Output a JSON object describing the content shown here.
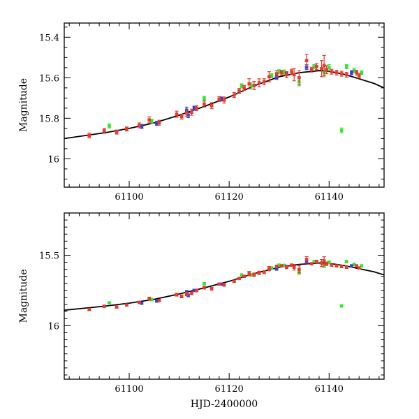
{
  "colors": {
    "red": "#e8392b",
    "blue": "#2a45d8",
    "green": "#33e633",
    "axes": "#000000",
    "model": "#000000"
  },
  "chart_data": [
    {
      "type": "scatter",
      "id": "top",
      "xlabel": "",
      "ylabel": "Magnitude",
      "xlim": [
        61087,
        61151
      ],
      "ylim": [
        16.14,
        15.33
      ],
      "inverted_y": true,
      "xticks": [
        61100,
        61120,
        61140
      ],
      "xtick_labels": [
        "61100",
        "61120",
        "61140"
      ],
      "yticks": [
        15.4,
        15.6,
        15.8,
        16.0
      ],
      "ytick_labels": [
        "15.4",
        "15.6",
        "15.8",
        "16"
      ],
      "model_curve": [
        [
          61087,
          15.9
        ],
        [
          61095,
          15.872
        ],
        [
          61100,
          15.85
        ],
        [
          61105,
          15.823
        ],
        [
          61110,
          15.785
        ],
        [
          61115,
          15.742
        ],
        [
          61120,
          15.695
        ],
        [
          61125,
          15.64
        ],
        [
          61130,
          15.595
        ],
        [
          61134,
          15.575
        ],
        [
          61138,
          15.565
        ],
        [
          61140,
          15.568
        ],
        [
          61143,
          15.583
        ],
        [
          61146,
          15.605
        ],
        [
          61149,
          15.628
        ],
        [
          61151,
          15.65
        ]
      ],
      "series": [
        {
          "name": "red",
          "color": "red",
          "points": [
            [
              61092.0,
              15.885,
              0.012
            ],
            [
              61095.0,
              15.862,
              0.012
            ],
            [
              61097.5,
              15.868,
              0.01
            ],
            [
              61099.5,
              15.853,
              0.01
            ],
            [
              61102.0,
              15.835,
              0.012
            ],
            [
              61104.0,
              15.808,
              0.015
            ],
            [
              61106.0,
              15.822,
              0.012
            ],
            [
              61109.5,
              15.78,
              0.015
            ],
            [
              61110.5,
              15.792,
              0.012
            ],
            [
              61111.5,
              15.775,
              0.015
            ],
            [
              61112.5,
              15.77,
              0.015
            ],
            [
              61113.5,
              15.75,
              0.012
            ],
            [
              61115.0,
              15.73,
              0.015
            ],
            [
              61116.5,
              15.738,
              0.015
            ],
            [
              61118.0,
              15.705,
              0.012
            ],
            [
              61119.0,
              15.71,
              0.015
            ],
            [
              61121.0,
              15.685,
              0.012
            ],
            [
              61122.0,
              15.665,
              0.012
            ],
            [
              61123.0,
              15.65,
              0.012
            ],
            [
              61124.0,
              15.63,
              0.025
            ],
            [
              61125.0,
              15.638,
              0.02
            ],
            [
              61126.0,
              15.625,
              0.02
            ],
            [
              61127.0,
              15.62,
              0.015
            ],
            [
              61128.0,
              15.595,
              0.025
            ],
            [
              61129.5,
              15.58,
              0.015
            ],
            [
              61130.5,
              15.575,
              0.012
            ],
            [
              61131.5,
              15.585,
              0.015
            ],
            [
              61132.5,
              15.57,
              0.012
            ],
            [
              61133.0,
              15.585,
              0.03
            ],
            [
              61134.0,
              15.6,
              0.035
            ],
            [
              61135.5,
              15.515,
              0.03
            ],
            [
              61136.5,
              15.56,
              0.012
            ],
            [
              61137.5,
              15.545,
              0.015
            ],
            [
              61138.5,
              15.555,
              0.04
            ],
            [
              61139.0,
              15.54,
              0.05
            ],
            [
              61139.5,
              15.56,
              0.02
            ],
            [
              61140.5,
              15.57,
              0.012
            ],
            [
              61141.5,
              15.575,
              0.012
            ],
            [
              61142.5,
              15.58,
              0.012
            ],
            [
              61143.5,
              15.585,
              0.012
            ],
            [
              61145.5,
              15.575,
              0.012
            ],
            [
              61146.0,
              15.59,
              0.012
            ]
          ]
        },
        {
          "name": "blue",
          "color": "blue",
          "points": [
            [
              61102.5,
              15.84,
              0.01
            ],
            [
              61105.5,
              15.825,
              0.01
            ],
            [
              61111.5,
              15.76,
              0.015
            ],
            [
              61111.8,
              15.785,
              0.012
            ],
            [
              61113.0,
              15.75,
              0.01
            ],
            [
              61118.5,
              15.705,
              0.01
            ],
            [
              61129.5,
              15.598,
              0.01
            ],
            [
              61131.5,
              15.58,
              0.01
            ],
            [
              61135.5,
              15.548,
              0.012
            ],
            [
              61144.5,
              15.575,
              0.01
            ]
          ]
        },
        {
          "name": "green",
          "color": "green",
          "points": [
            [
              61096.0,
              15.838,
              0.01
            ],
            [
              61104.5,
              15.815,
              0.01
            ],
            [
              61115.0,
              15.702,
              0.01
            ],
            [
              61122.5,
              15.64,
              0.01
            ],
            [
              61124.5,
              15.64,
              0.015
            ],
            [
              61128.5,
              15.59,
              0.01
            ],
            [
              61130.0,
              15.57,
              0.01
            ],
            [
              61131.0,
              15.572,
              0.01
            ],
            [
              61134.0,
              15.62,
              0.02
            ],
            [
              61137.0,
              15.545,
              0.01
            ],
            [
              61139.0,
              15.575,
              0.02
            ],
            [
              61140.0,
              15.55,
              0.015
            ],
            [
              61142.5,
              15.86,
              0.012
            ],
            [
              61143.5,
              15.545,
              0.01
            ],
            [
              61145.0,
              15.565,
              0.01
            ],
            [
              61146.5,
              15.575,
              0.01
            ]
          ]
        }
      ]
    },
    {
      "type": "scatter",
      "id": "bottom",
      "xlabel": "HJD-2400000",
      "ylabel": "Magnitude",
      "xlim": [
        61087,
        61151
      ],
      "ylim": [
        16.38,
        15.2
      ],
      "inverted_y": true,
      "xticks": [
        61100,
        61120,
        61140
      ],
      "xtick_labels": [
        "61100",
        "61120",
        "61140"
      ],
      "yticks": [
        15.5,
        16.0
      ],
      "ytick_labels": [
        "15.5",
        "16"
      ],
      "model_curve": [
        [
          61087,
          15.89
        ],
        [
          61095,
          15.862
        ],
        [
          61100,
          15.84
        ],
        [
          61105,
          15.813
        ],
        [
          61110,
          15.775
        ],
        [
          61115,
          15.732
        ],
        [
          61120,
          15.685
        ],
        [
          61125,
          15.63
        ],
        [
          61130,
          15.585
        ],
        [
          61134,
          15.565
        ],
        [
          61138,
          15.555
        ],
        [
          61140,
          15.558
        ],
        [
          61143,
          15.573
        ],
        [
          61146,
          15.595
        ],
        [
          61149,
          15.618
        ],
        [
          61151,
          15.64
        ]
      ],
      "series": [
        {
          "name": "red",
          "color": "red",
          "points": [
            [
              61092.0,
              15.885,
              0.008
            ],
            [
              61095.0,
              15.862,
              0.008
            ],
            [
              61097.5,
              15.868,
              0.008
            ],
            [
              61099.5,
              15.853,
              0.008
            ],
            [
              61102.0,
              15.835,
              0.008
            ],
            [
              61104.0,
              15.808,
              0.01
            ],
            [
              61106.0,
              15.822,
              0.008
            ],
            [
              61109.5,
              15.78,
              0.01
            ],
            [
              61110.5,
              15.792,
              0.01
            ],
            [
              61111.5,
              15.775,
              0.012
            ],
            [
              61112.5,
              15.77,
              0.01
            ],
            [
              61113.5,
              15.75,
              0.01
            ],
            [
              61115.0,
              15.73,
              0.01
            ],
            [
              61116.5,
              15.738,
              0.01
            ],
            [
              61118.0,
              15.705,
              0.008
            ],
            [
              61119.0,
              15.71,
              0.01
            ],
            [
              61121.0,
              15.685,
              0.008
            ],
            [
              61122.0,
              15.665,
              0.008
            ],
            [
              61123.0,
              15.65,
              0.008
            ],
            [
              61124.0,
              15.63,
              0.015
            ],
            [
              61125.0,
              15.638,
              0.012
            ],
            [
              61126.0,
              15.625,
              0.012
            ],
            [
              61127.0,
              15.62,
              0.01
            ],
            [
              61128.0,
              15.595,
              0.015
            ],
            [
              61129.5,
              15.58,
              0.01
            ],
            [
              61130.5,
              15.575,
              0.008
            ],
            [
              61131.5,
              15.585,
              0.01
            ],
            [
              61132.5,
              15.57,
              0.008
            ],
            [
              61133.0,
              15.585,
              0.02
            ],
            [
              61134.0,
              15.6,
              0.025
            ],
            [
              61135.5,
              15.53,
              0.02
            ],
            [
              61136.5,
              15.56,
              0.008
            ],
            [
              61137.5,
              15.545,
              0.01
            ],
            [
              61138.5,
              15.555,
              0.025
            ],
            [
              61139.0,
              15.54,
              0.03
            ],
            [
              61139.5,
              15.56,
              0.012
            ],
            [
              61140.5,
              15.57,
              0.008
            ],
            [
              61141.5,
              15.575,
              0.008
            ],
            [
              61142.5,
              15.58,
              0.008
            ],
            [
              61143.5,
              15.585,
              0.008
            ],
            [
              61145.5,
              15.575,
              0.008
            ],
            [
              61146.0,
              15.59,
              0.008
            ]
          ]
        },
        {
          "name": "blue",
          "color": "blue",
          "points": [
            [
              61102.5,
              15.84,
              0.008
            ],
            [
              61105.5,
              15.825,
              0.008
            ],
            [
              61111.5,
              15.76,
              0.01
            ],
            [
              61111.8,
              15.785,
              0.01
            ],
            [
              61113.0,
              15.75,
              0.008
            ],
            [
              61118.5,
              15.705,
              0.008
            ],
            [
              61129.5,
              15.598,
              0.008
            ],
            [
              61131.5,
              15.58,
              0.008
            ],
            [
              61135.5,
              15.548,
              0.01
            ],
            [
              61144.5,
              15.575,
              0.008
            ]
          ]
        },
        {
          "name": "green",
          "color": "green",
          "points": [
            [
              61096.0,
              15.838,
              0.008
            ],
            [
              61104.5,
              15.815,
              0.008
            ],
            [
              61115.0,
              15.702,
              0.008
            ],
            [
              61122.5,
              15.64,
              0.008
            ],
            [
              61124.5,
              15.64,
              0.01
            ],
            [
              61128.5,
              15.59,
              0.008
            ],
            [
              61130.0,
              15.57,
              0.008
            ],
            [
              61131.0,
              15.572,
              0.008
            ],
            [
              61134.0,
              15.62,
              0.015
            ],
            [
              61137.0,
              15.545,
              0.008
            ],
            [
              61139.0,
              15.575,
              0.012
            ],
            [
              61140.0,
              15.55,
              0.01
            ],
            [
              61142.5,
              15.86,
              0.008
            ],
            [
              61143.5,
              15.545,
              0.008
            ],
            [
              61145.0,
              15.565,
              0.008
            ],
            [
              61146.5,
              15.575,
              0.008
            ]
          ]
        }
      ]
    }
  ]
}
